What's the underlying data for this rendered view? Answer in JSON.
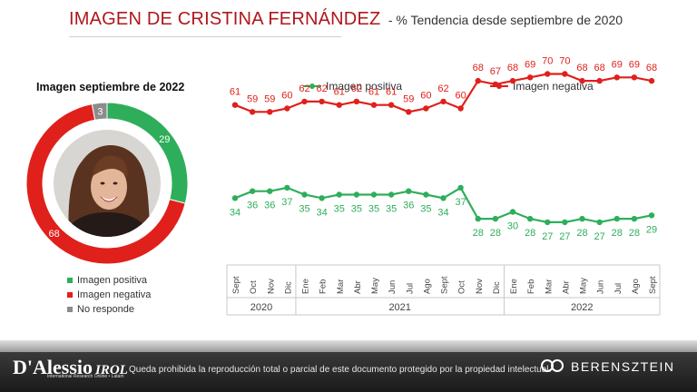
{
  "header": {
    "title": "IMAGEN DE CRISTINA FERNÁNDEZ",
    "subtitle": "- % Tendencia desde septiembre de 2020"
  },
  "colors": {
    "positive": "#2eae5a",
    "negative": "#e0201b",
    "no_response": "#8c8c8c",
    "title": "#b0161c"
  },
  "chart_data": [
    {
      "type": "pie",
      "title": "Imagen septiembre de 2022",
      "labels": [
        "Imagen positiva",
        "Imagen negativa",
        "No responde"
      ],
      "values": [
        29,
        68,
        3
      ],
      "colors": [
        "#2eae5a",
        "#e0201b",
        "#8c8c8c"
      ],
      "legend_position": "bottom",
      "center_image": "portrait-photo"
    },
    {
      "type": "line",
      "categories": [
        "Sept",
        "Oct",
        "Nov",
        "Dic",
        "Ene",
        "Feb",
        "Mar",
        "Abr",
        "May",
        "Jun",
        "Jul",
        "Ago",
        "Sept",
        "Oct",
        "Nov",
        "Dic",
        "Ene",
        "Feb",
        "Mar",
        "Abr",
        "May",
        "Jun",
        "Jul",
        "Ago",
        "Sept"
      ],
      "year_groups": [
        {
          "label": "2020",
          "count": 4
        },
        {
          "label": "2021",
          "count": 12
        },
        {
          "label": "2022",
          "count": 9
        }
      ],
      "series": [
        {
          "name": "Imagen positiva",
          "color": "#2eae5a",
          "values": [
            34,
            36,
            36,
            37,
            35,
            34,
            35,
            35,
            35,
            35,
            36,
            35,
            34,
            37,
            28,
            28,
            30,
            28,
            27,
            27,
            28,
            27,
            28,
            28,
            29
          ]
        },
        {
          "name": "Imagen negativa",
          "color": "#e0201b",
          "values": [
            61,
            59,
            59,
            60,
            62,
            62,
            61,
            62,
            61,
            61,
            59,
            60,
            62,
            60,
            68,
            67,
            68,
            69,
            70,
            70,
            68,
            68,
            69,
            69,
            68
          ]
        }
      ],
      "legend_position": "top",
      "grid": false
    }
  ],
  "footer": {
    "left_logo": "D'Alessio",
    "left_logo_suffix": "IROL",
    "left_logo_tagline": "International Research Online • Latam",
    "notice": "Queda prohibida la reproducción total o parcial de este documento protegido por la propiedad intelectual.",
    "right_logo": "BERENSZTEIN"
  }
}
